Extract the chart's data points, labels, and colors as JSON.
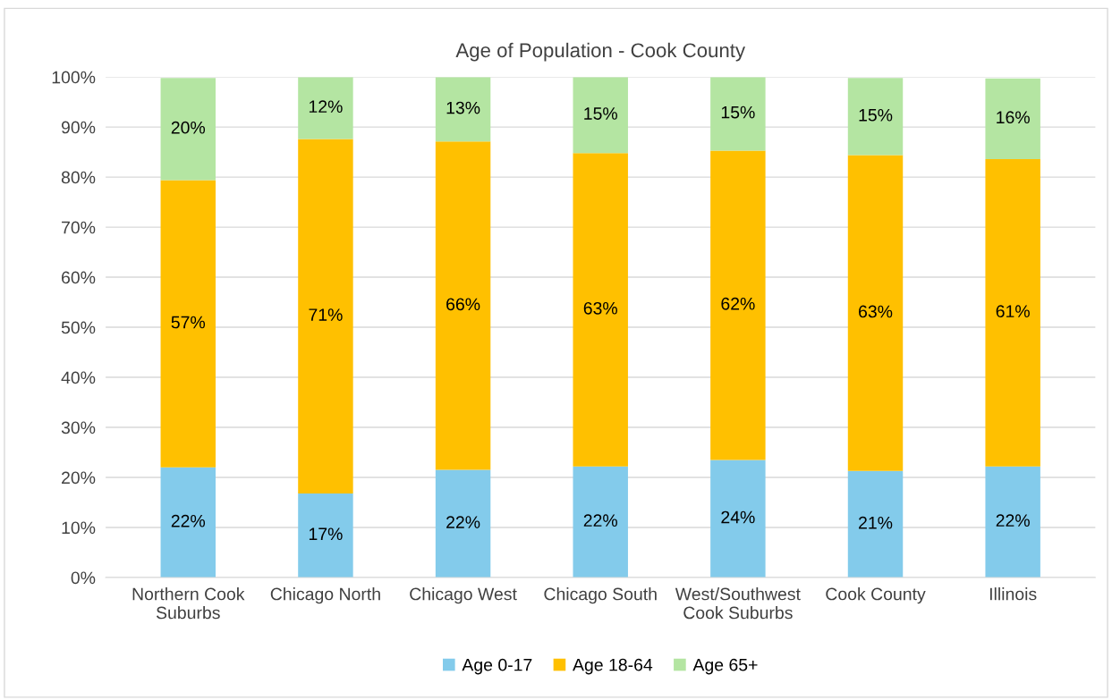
{
  "chart_data": {
    "type": "bar",
    "title": "Age of Population - Cook County",
    "stacked": true,
    "categories": [
      "Northern Cook\nSuburbs",
      "Chicago North",
      "Chicago West",
      "Chicago South",
      "West/Southwest\nCook Suburbs",
      "Cook County",
      "Illinois"
    ],
    "series": [
      {
        "name": "Age 0-17",
        "color": "#83cbeb",
        "values": [
          22.0,
          16.8,
          21.5,
          22.2,
          23.5,
          21.3,
          22.2
        ],
        "value_labels": [
          "22%",
          "17%",
          "22%",
          "22%",
          "24%",
          "21%",
          "22%"
        ]
      },
      {
        "name": "Age 18-64",
        "color": "#ffc000",
        "values": [
          57.4,
          70.8,
          65.6,
          62.6,
          61.8,
          63.1,
          61.4
        ],
        "value_labels": [
          "57%",
          "71%",
          "66%",
          "63%",
          "62%",
          "63%",
          "61%"
        ]
      },
      {
        "name": "Age 65+",
        "color": "#b4e5a2",
        "values": [
          20.4,
          12.4,
          12.9,
          15.2,
          14.7,
          15.4,
          16.1
        ],
        "value_labels": [
          "20%",
          "12%",
          "13%",
          "15%",
          "15%",
          "15%",
          "16%"
        ]
      }
    ],
    "ylim": [
      0,
      100
    ],
    "yticks": [
      {
        "value": 0,
        "label": "0%"
      },
      {
        "value": 10,
        "label": "10%"
      },
      {
        "value": 20,
        "label": "20%"
      },
      {
        "value": 30,
        "label": "30%"
      },
      {
        "value": 40,
        "label": "40%"
      },
      {
        "value": 50,
        "label": "50%"
      },
      {
        "value": 60,
        "label": "60%"
      },
      {
        "value": 70,
        "label": "70%"
      },
      {
        "value": 80,
        "label": "80%"
      },
      {
        "value": 90,
        "label": "90%"
      },
      {
        "value": 100,
        "label": "100%"
      }
    ],
    "grid": "y",
    "legend": "bottom"
  }
}
